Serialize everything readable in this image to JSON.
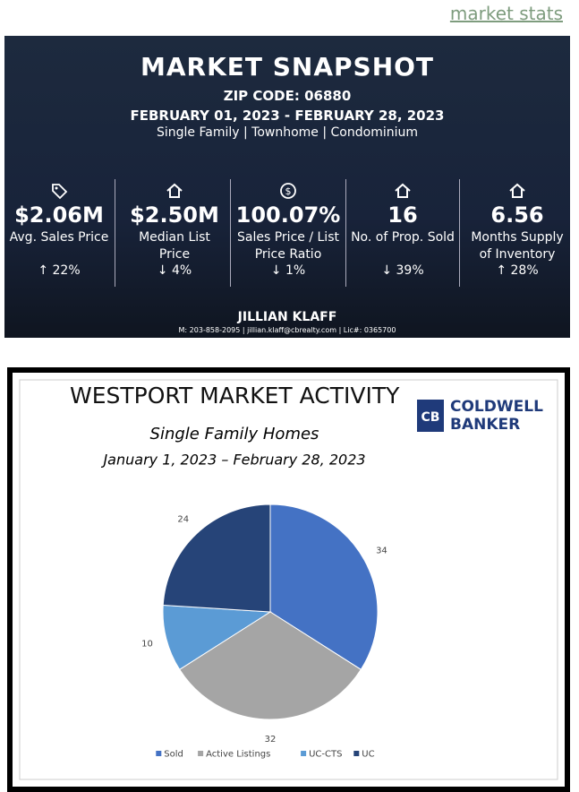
{
  "header": {
    "link": "market stats"
  },
  "snapshot": {
    "title": "MARKET SNAPSHOT",
    "zip": "ZIP CODE: 06880",
    "dates": "FEBRUARY 01, 2023 - FEBRUARY 28, 2023",
    "types": "Single Family | Townhome | Condominium",
    "stats": [
      {
        "value": "$2.06M",
        "label": "Avg. Sales Price",
        "change": "↑ 22%"
      },
      {
        "value": "$2.50M",
        "label": "Median List Price",
        "change": "↓ 4%"
      },
      {
        "value": "100.07%",
        "label": "Sales Price / List Price Ratio",
        "change": "↓ 1%"
      },
      {
        "value": "16",
        "label": "No. of Prop. Sold",
        "change": "↓ 39%"
      },
      {
        "value": "6.56",
        "label": "Months Supply of Inventory",
        "change": "↑ 28%"
      }
    ],
    "agent": "JILLIAN KLAFF",
    "contact": "M: 203-858-2095 | jillian.klaff@cbrealty.com | Lic#: 0365700"
  },
  "chart_data": {
    "type": "pie",
    "title": "WESTPORT MARKET ACTIVITY",
    "subtitle": "Single Family Homes",
    "date_range": "January 1, 2023 – February 28, 2023",
    "brand": [
      "COLDWELL",
      "BANKER"
    ],
    "categories": [
      "Sold",
      "Active Listings",
      "UC-CTS",
      "UC"
    ],
    "values": [
      34,
      32,
      10,
      24
    ],
    "colors": [
      "#4472c4",
      "#a5a5a5",
      "#5b9bd5",
      "#264478"
    ]
  }
}
